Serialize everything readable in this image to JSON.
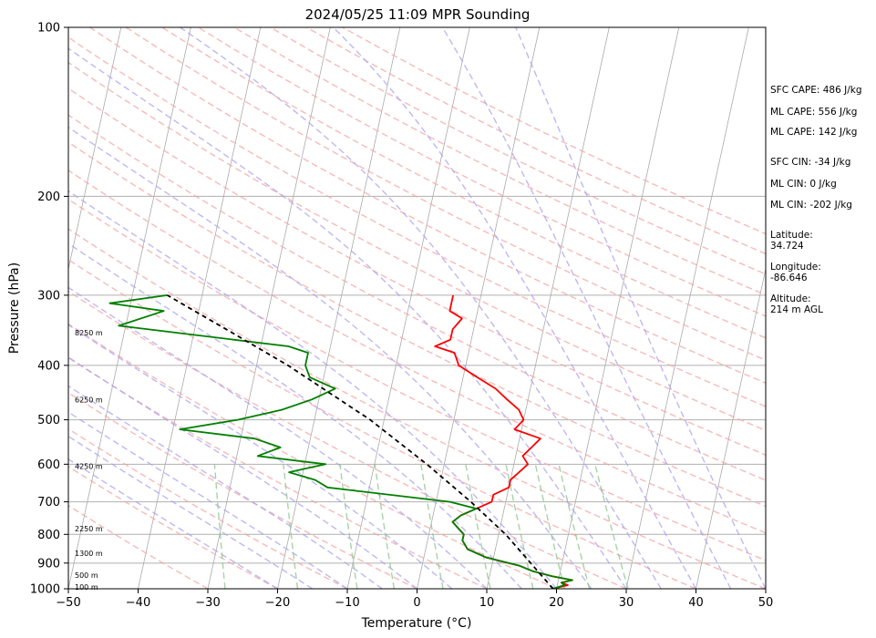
{
  "chart_data": {
    "type": "line",
    "title": "2024/05/25 11:09 MPR Sounding",
    "xlabel": "Temperature (°C)",
    "ylabel": "Pressure (hPa)",
    "xlim": [
      -50,
      50
    ],
    "ylim": [
      1000,
      100
    ],
    "y_scale": "log",
    "skew": "skew-T log-p",
    "grid": true,
    "x_ticks": [
      "−50",
      "−40",
      "−30",
      "−20",
      "−10",
      "0",
      "10",
      "20",
      "30",
      "40",
      "50"
    ],
    "y_ticks": [
      "100",
      "200",
      "300",
      "400",
      "500",
      "600",
      "700",
      "800",
      "900",
      "1000"
    ],
    "altitude_labels": [
      "8250 m",
      "6250 m",
      "4250 m",
      "2250 m",
      "1300 m",
      "500 m",
      "100 m"
    ],
    "series": [
      {
        "color": "#ff0000",
        "points": [
          [
            1000,
            19.5
          ],
          [
            985,
            21.5
          ],
          [
            975,
            20.5
          ],
          [
            965,
            22
          ],
          [
            950,
            19
          ],
          [
            930,
            16
          ],
          [
            910,
            14
          ],
          [
            880,
            9
          ],
          [
            850,
            6
          ],
          [
            820,
            5
          ],
          [
            800,
            5
          ],
          [
            780,
            4
          ],
          [
            760,
            3
          ],
          [
            740,
            4
          ],
          [
            720,
            6
          ],
          [
            700,
            8
          ],
          [
            680,
            8
          ],
          [
            660,
            10
          ],
          [
            640,
            10
          ],
          [
            620,
            11
          ],
          [
            600,
            12
          ],
          [
            580,
            11
          ],
          [
            560,
            12
          ],
          [
            540,
            13
          ],
          [
            520,
            9
          ],
          [
            500,
            10
          ],
          [
            480,
            9
          ],
          [
            460,
            7
          ],
          [
            440,
            5
          ],
          [
            420,
            2
          ],
          [
            400,
            -1
          ],
          [
            380,
            -2
          ],
          [
            370,
            -5
          ],
          [
            360,
            -3
          ],
          [
            345,
            -3
          ],
          [
            330,
            -2
          ],
          [
            320,
            -4
          ],
          [
            310,
            -4
          ],
          [
            300,
            -4
          ]
        ]
      },
      {
        "color": "#008000",
        "points": [
          [
            1000,
            19.5
          ],
          [
            985,
            21
          ],
          [
            975,
            20.5
          ],
          [
            965,
            22
          ],
          [
            950,
            19
          ],
          [
            930,
            16
          ],
          [
            910,
            14
          ],
          [
            880,
            9
          ],
          [
            850,
            6
          ],
          [
            820,
            5
          ],
          [
            800,
            5
          ],
          [
            780,
            4
          ],
          [
            760,
            3
          ],
          [
            740,
            4
          ],
          [
            720,
            6
          ],
          [
            700,
            2
          ],
          [
            660,
            -16
          ],
          [
            640,
            -18
          ],
          [
            620,
            -22
          ],
          [
            600,
            -17
          ],
          [
            580,
            -27
          ],
          [
            560,
            -24
          ],
          [
            540,
            -28
          ],
          [
            520,
            -39
          ],
          [
            500,
            -31
          ],
          [
            480,
            -25
          ],
          [
            460,
            -21
          ],
          [
            440,
            -18
          ],
          [
            420,
            -22
          ],
          [
            400,
            -23
          ],
          [
            380,
            -23
          ],
          [
            370,
            -26
          ],
          [
            340,
            -51
          ],
          [
            320,
            -45
          ],
          [
            310,
            -53
          ],
          [
            300,
            -45
          ]
        ]
      },
      {
        "color": "#000000",
        "linestyle": "dashed",
        "points": [
          [
            1000,
            19.5
          ],
          [
            900,
            15.5
          ],
          [
            800,
            11
          ],
          [
            700,
            5
          ],
          [
            600,
            -2.5
          ],
          [
            500,
            -12
          ],
          [
            400,
            -25.5
          ],
          [
            350,
            -34.5
          ],
          [
            300,
            -45
          ]
        ]
      }
    ],
    "stats": [
      "SFC CAPE: 486 J/kg",
      "ML CAPE: 556 J/kg",
      "ML CAPE: 142 J/kg",
      "SFC CIN: -34 J/kg",
      "ML CIN: 0 J/kg",
      "ML CIN: -202 J/kg"
    ],
    "location": [
      {
        "label": "Latitude:",
        "value": "34.724"
      },
      {
        "label": "Longitude:",
        "value": "-86.646"
      },
      {
        "label": "Altitude:",
        "value": "214 m AGL"
      }
    ]
  },
  "colors": {
    "temperature": "#ff0000",
    "dewpoint": "#008000",
    "parcel": "#000000",
    "dry_adiabat": "#f4a3a3",
    "moist_adiabat": "#a8a0f0",
    "mixing_ratio": "#90c890",
    "isotherm": "#aaaaaa"
  }
}
